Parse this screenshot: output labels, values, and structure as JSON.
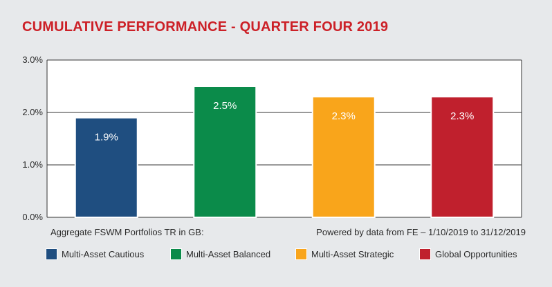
{
  "title": "CUMULATIVE PERFORMANCE - QUARTER FOUR 2019",
  "colors": {
    "title": "#cc2027",
    "background": "#e7e9eb",
    "plot_background": "#ffffff",
    "grid": "#333333",
    "bar_border": "#ffffff",
    "label_text": "#ffffff"
  },
  "chart_data": {
    "type": "bar",
    "title": "CUMULATIVE PERFORMANCE - QUARTER FOUR 2019",
    "categories": [
      "Multi-Asset Cautious",
      "Multi-Asset Balanced",
      "Multi-Asset Strategic",
      "Global Opportunities"
    ],
    "values": [
      1.9,
      2.5,
      2.3,
      2.3
    ],
    "value_labels": [
      "1.9%",
      "2.5%",
      "2.3%",
      "2.3%"
    ],
    "colors": [
      "#1f4e80",
      "#0b8b4a",
      "#f9a51b",
      "#c0202d"
    ],
    "ylim": [
      0,
      3
    ],
    "yticks": [
      0,
      1,
      2,
      3
    ],
    "ytick_labels": [
      "0.0%",
      "1.0%",
      "2.0%",
      "3.0%"
    ],
    "grid": true,
    "xlabel": "",
    "ylabel": "",
    "legend_position": "bottom"
  },
  "footer": {
    "left": "Aggregate FSWM Portfolios TR in GB:",
    "right": "Powered by data from FE – 1/10/2019 to 31/12/2019"
  }
}
